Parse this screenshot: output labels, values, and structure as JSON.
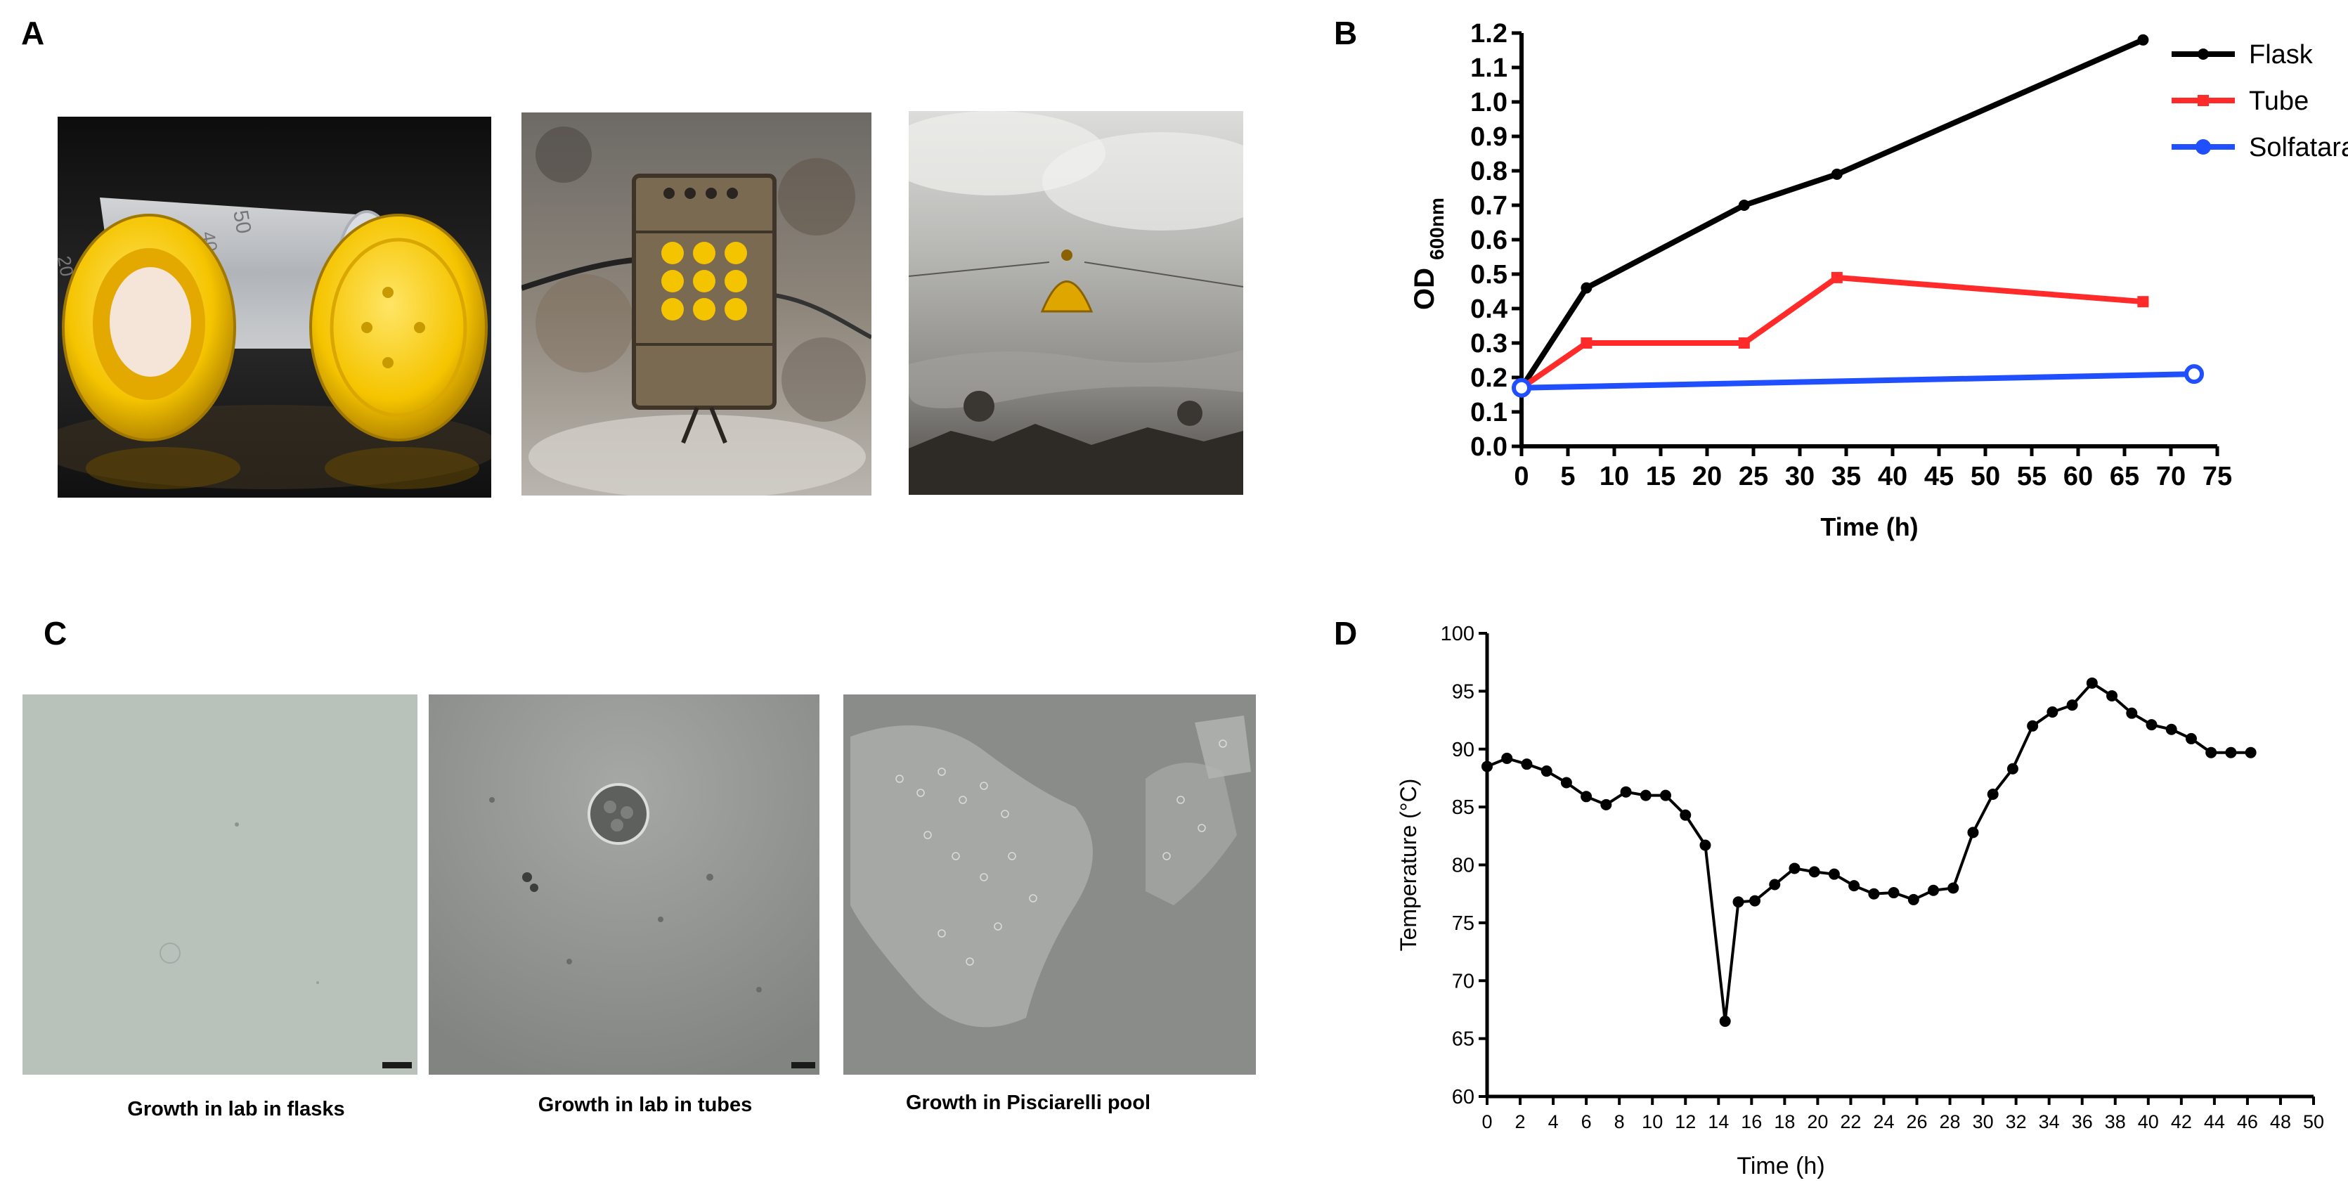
{
  "panels": {
    "a": {
      "letter": "A"
    },
    "b": {
      "letter": "B"
    },
    "c": {
      "letter": "C"
    },
    "d": {
      "letter": "D"
    }
  },
  "captions": {
    "flasks": "Growth in lab in flasks",
    "tubes": "Growth in lab in tubes",
    "pool": "Growth in Pisciarelli pool"
  },
  "tube_marks": {
    "fifty": "50",
    "forty": "40",
    "twenty": "20"
  },
  "colors": {
    "flask": "#000000",
    "tube": "#ff2a2a",
    "solfatara": "#1f4fff",
    "cap_yellow": "#f5c400"
  },
  "chart_data": [
    {
      "type": "line",
      "ylabel_main": "OD",
      "ylabel_sub": "600nm",
      "xlabel": "Time (h)",
      "xlim": [
        0,
        75
      ],
      "ylim": [
        0.0,
        1.2
      ],
      "x_ticks": [
        "0",
        "5",
        "10",
        "15",
        "20",
        "25",
        "30",
        "35",
        "40",
        "45",
        "50",
        "55",
        "60",
        "65",
        "70",
        "75"
      ],
      "y_ticks": [
        "0.0",
        "0.1",
        "0.2",
        "0.3",
        "0.4",
        "0.5",
        "0.6",
        "0.7",
        "0.8",
        "0.9",
        "1.0",
        "1.1",
        "1.2"
      ],
      "legend": "top-right",
      "grid": false,
      "series": [
        {
          "name": "Flask",
          "marker": "circle-small",
          "x": [
            0,
            7,
            24,
            34,
            67
          ],
          "y": [
            0.17,
            0.46,
            0.7,
            0.79,
            1.18
          ]
        },
        {
          "name": "Tube",
          "marker": "square",
          "x": [
            0,
            7,
            24,
            34,
            67
          ],
          "y": [
            0.17,
            0.3,
            0.3,
            0.49,
            0.42
          ]
        },
        {
          "name": "Solfatara",
          "marker": "circle-open",
          "x": [
            0,
            72.5
          ],
          "y": [
            0.17,
            0.21
          ]
        }
      ]
    },
    {
      "type": "line",
      "ylabel": "Temperature (°C)",
      "xlabel": "Time (h)",
      "xlim": [
        0,
        50
      ],
      "ylim": [
        60,
        100
      ],
      "x_ticks": [
        "0",
        "2",
        "4",
        "6",
        "8",
        "10",
        "12",
        "14",
        "16",
        "18",
        "20",
        "22",
        "24",
        "26",
        "28",
        "30",
        "32",
        "34",
        "36",
        "38",
        "40",
        "42",
        "44",
        "46",
        "48",
        "50"
      ],
      "y_ticks": [
        "60",
        "65",
        "70",
        "75",
        "80",
        "85",
        "90",
        "95",
        "100"
      ],
      "grid": false,
      "series": [
        {
          "x": [
            0,
            1.2,
            2.4,
            3.6,
            4.8,
            6.0,
            7.2,
            8.4,
            9.6,
            10.8,
            12.0,
            13.2,
            14.4,
            15.2,
            16.2,
            17.4,
            18.6,
            19.8,
            21.0,
            22.2,
            23.4,
            24.6,
            25.8,
            27.0,
            28.2,
            29.4,
            30.6,
            31.8,
            33.0,
            34.2,
            35.4,
            36.6,
            37.8,
            39.0,
            40.2,
            41.4,
            42.6,
            43.8,
            45.0,
            46.2
          ],
          "y": [
            88.5,
            89.2,
            88.7,
            88.1,
            87.1,
            85.9,
            85.2,
            86.3,
            86.0,
            86.0,
            84.3,
            81.7,
            66.5,
            76.8,
            76.9,
            78.3,
            79.7,
            79.4,
            79.2,
            78.2,
            77.5,
            77.6,
            77.0,
            77.8,
            78.0,
            82.8,
            86.1,
            88.3,
            92.0,
            93.2,
            93.8,
            95.7,
            94.6,
            93.1,
            92.1,
            91.7,
            90.9,
            89.7,
            89.7,
            89.7
          ]
        }
      ]
    }
  ]
}
